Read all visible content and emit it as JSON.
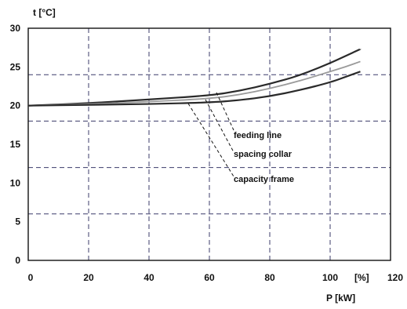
{
  "chart_data": {
    "type": "line",
    "title": "",
    "ylabel": "t  [°C]",
    "xlabel": "P  [kW]",
    "x_unit_label": "[%]",
    "xlim": [
      0,
      120
    ],
    "ylim": [
      0,
      30
    ],
    "x_ticks": [
      0,
      20,
      40,
      60,
      80,
      100,
      120
    ],
    "y_ticks": [
      0,
      5,
      10,
      15,
      20,
      25,
      30
    ],
    "x_grid": [
      20,
      40,
      60,
      80,
      100
    ],
    "y_grid": [
      6,
      12,
      18,
      24
    ],
    "grid": true,
    "series": [
      {
        "name": "feeding line",
        "color": "#2a2a2a",
        "x": [
          0,
          20,
          40,
          60,
          70,
          80,
          90,
          100,
          105,
          110
        ],
        "y": [
          20,
          20.3,
          20.8,
          21.3,
          21.9,
          22.8,
          23.9,
          25.5,
          26.4,
          27.3
        ]
      },
      {
        "name": "spacing collar",
        "color": "#9a9a9a",
        "x": [
          0,
          20,
          40,
          60,
          70,
          80,
          90,
          100,
          105,
          110
        ],
        "y": [
          20,
          20.2,
          20.5,
          20.9,
          21.4,
          22.2,
          23.2,
          24.4,
          25.0,
          25.7
        ]
      },
      {
        "name": "capacity frame",
        "color": "#2a2a2a",
        "x": [
          0,
          20,
          40,
          60,
          70,
          80,
          90,
          100,
          105,
          110
        ],
        "y": [
          20,
          20.1,
          20.2,
          20.4,
          20.7,
          21.2,
          22.0,
          23.0,
          23.7,
          24.4
        ]
      }
    ],
    "annotations": [
      "feeding line",
      "spacing collar",
      "capacity frame"
    ]
  }
}
